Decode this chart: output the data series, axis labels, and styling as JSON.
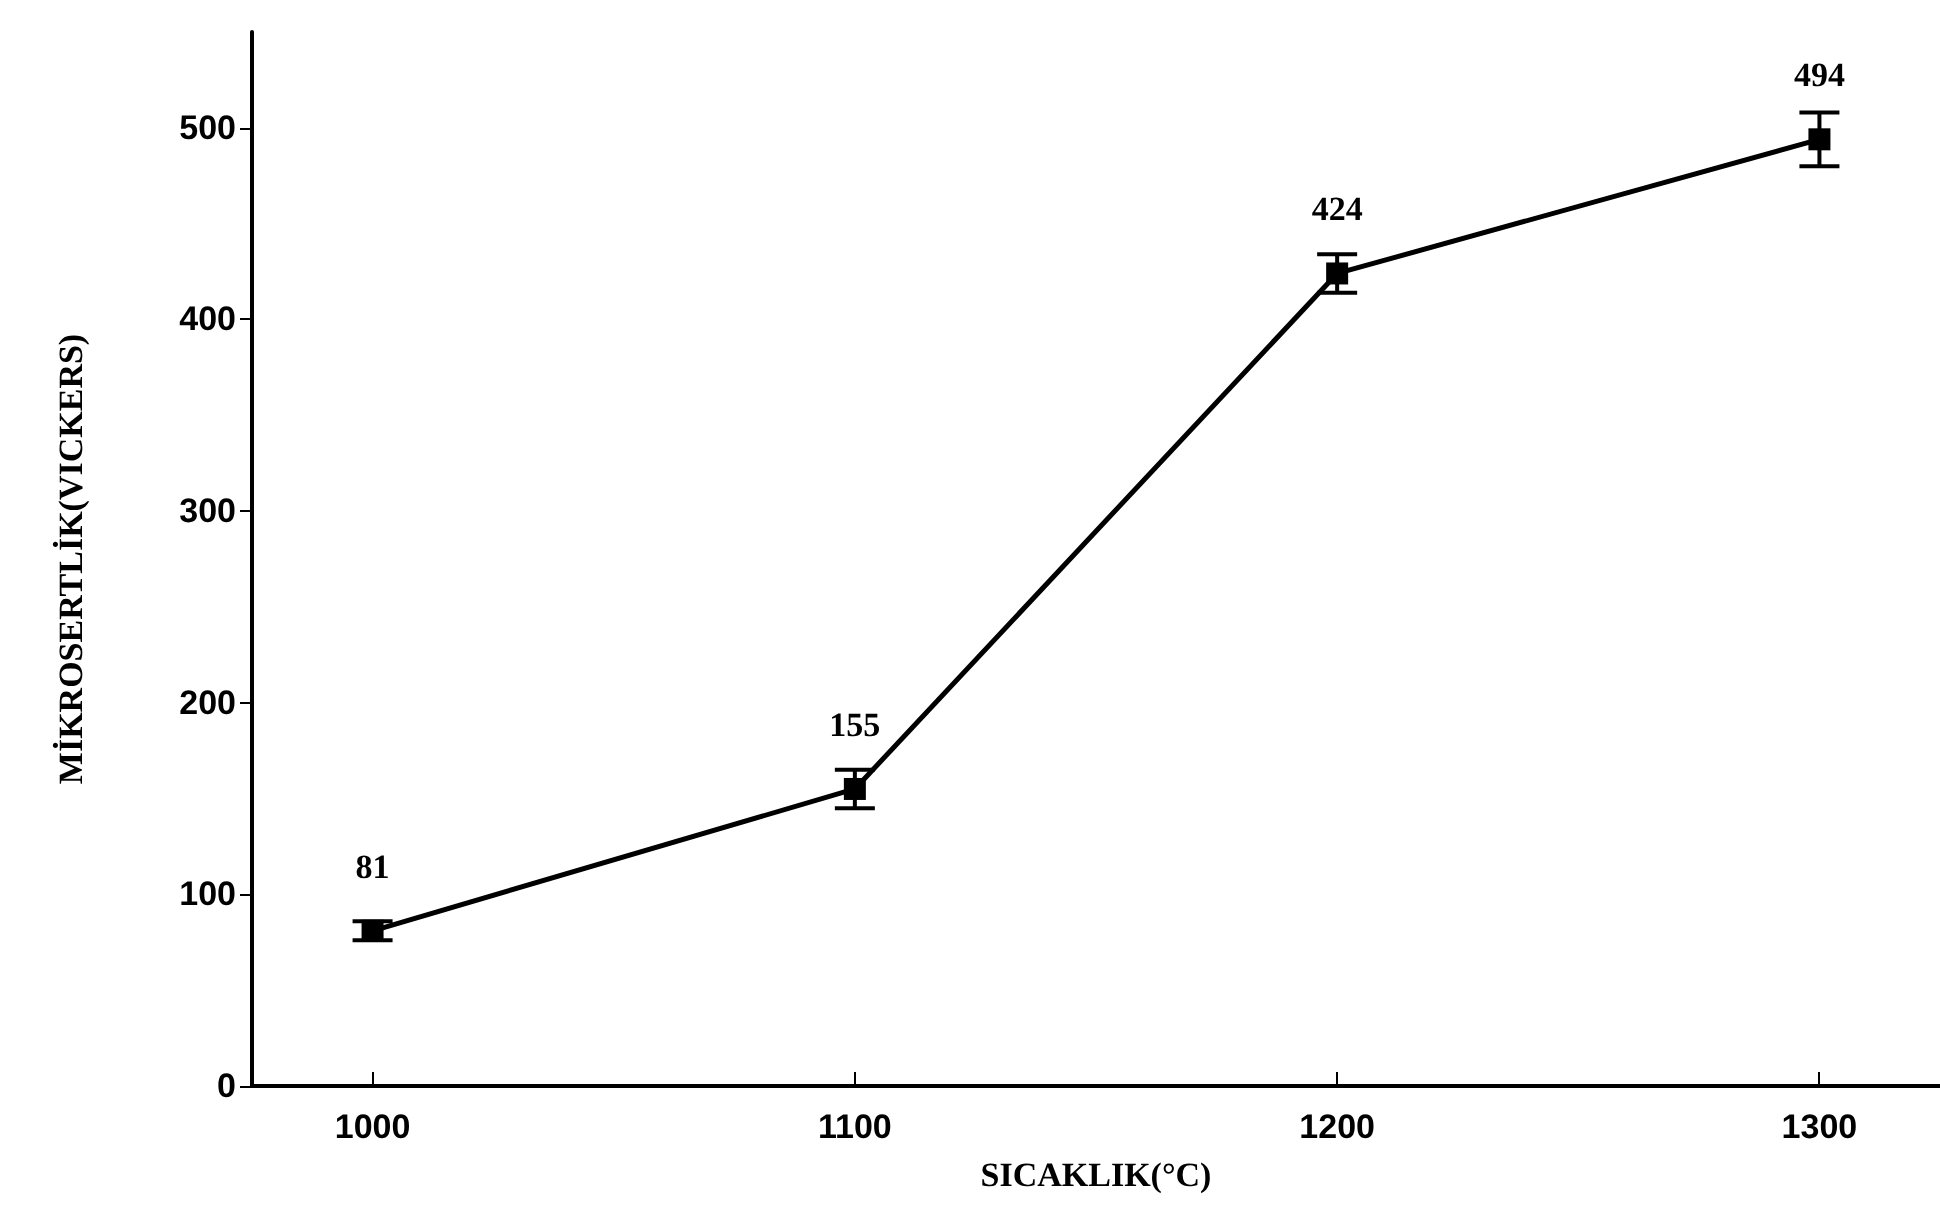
{
  "chart_data": {
    "type": "line",
    "xlabel": "SICAKLIK(°C)",
    "ylabel": "MİKROSERTLİK(VICKERS)",
    "x": [
      1000,
      1100,
      1200,
      1300
    ],
    "series": [
      {
        "color": "#000000",
        "values": [
          81,
          155,
          424,
          494
        ],
        "errors": [
          5,
          10,
          10,
          14
        ]
      }
    ],
    "xlim": [
      975,
      1325
    ],
    "xticks": [
      1000,
      1100,
      1200,
      1300
    ],
    "ylim": [
      0,
      550
    ],
    "yticks": [
      0,
      100,
      200,
      300,
      400,
      500
    ],
    "data_labels": true,
    "marker": "square",
    "line_style": "solid"
  }
}
